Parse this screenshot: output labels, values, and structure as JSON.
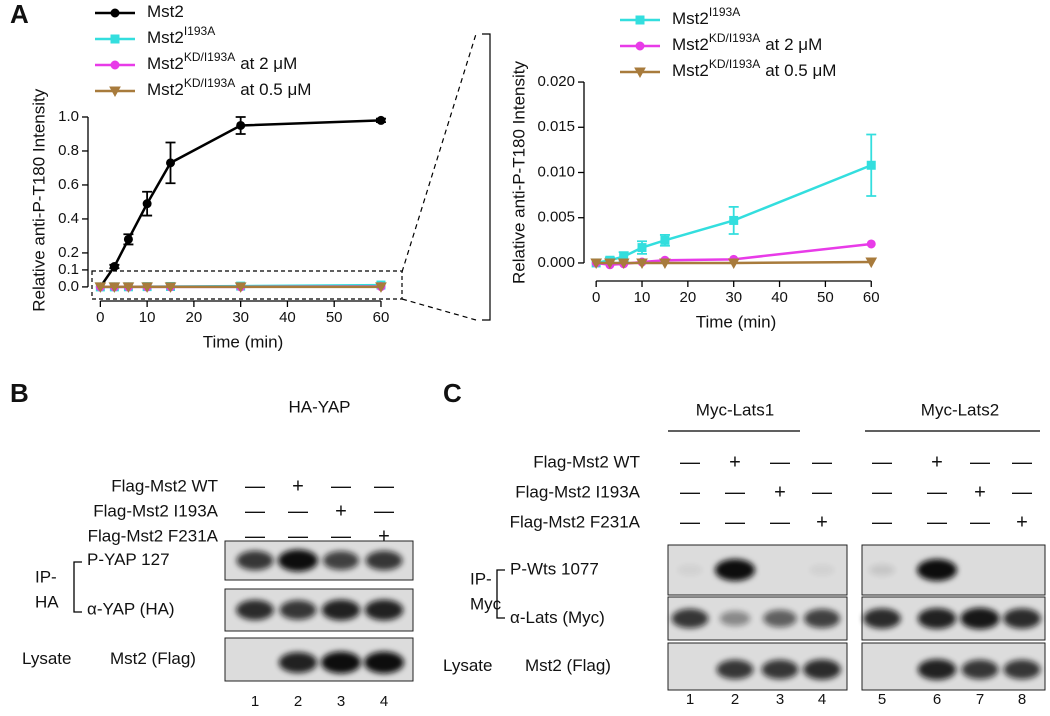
{
  "panel_labels": [
    "A",
    "B",
    "C"
  ],
  "chart_data": [
    {
      "type": "line",
      "xlabel": "Time (min)",
      "ylabel": "Relative anti-P-T180 Intensity",
      "x": [
        0,
        3,
        6,
        10,
        15,
        30,
        60
      ],
      "xlim": [
        -2,
        63
      ],
      "xticks": [
        0,
        10,
        20,
        30,
        40,
        50,
        60
      ],
      "ylim": [
        -0.03,
        1.05
      ],
      "yticks": [
        {
          "value": 0,
          "label": "0.0"
        },
        0.1,
        0.2,
        0.4,
        0.6,
        0.8,
        {
          "value": 1,
          "label": "1.0"
        }
      ],
      "series": [
        {
          "name": [
            "Mst2"
          ],
          "color": "#000000",
          "marker": "circle",
          "values": [
            0,
            0.12,
            0.28,
            0.49,
            0.73,
            0.95,
            0.98
          ],
          "errors": [
            null,
            0.01,
            0.03,
            0.07,
            0.12,
            0.05,
            0.01
          ]
        },
        {
          "name": [
            "Mst2",
            "I193A"
          ],
          "color": "#33dede",
          "marker": "square",
          "values": [
            0,
            0.0003,
            0.0007,
            0.0017,
            0.0025,
            0.0047,
            0.0108
          ],
          "errors": [
            null,
            null,
            null,
            null,
            null,
            null,
            null
          ]
        },
        {
          "name": [
            "Mst2",
            "KD/I193A",
            "at 2 μM"
          ],
          "color": "#e83be8",
          "marker": "circle",
          "values": [
            0,
            -0.0002,
            -0.0001,
            0.0001,
            0.0003,
            0.0004,
            0.0021
          ],
          "errors": [
            null,
            null,
            null,
            null,
            null,
            null,
            null
          ]
        },
        {
          "name": [
            "Mst2",
            "KD/I193A",
            "at 0.5 μM"
          ],
          "color": "#a87b3c",
          "marker": "triangle-down",
          "values": [
            0,
            0,
            0,
            0,
            0,
            0,
            0.0001
          ],
          "errors": [
            null,
            null,
            null,
            null,
            null,
            null,
            null
          ]
        }
      ]
    },
    {
      "type": "line",
      "xlabel": "Time (min)",
      "ylabel": "Relative anti-P-T180 Intensity",
      "x": [
        0,
        3,
        6,
        10,
        15,
        30,
        60
      ],
      "xlim": [
        -2,
        63
      ],
      "xticks": [
        0,
        10,
        20,
        30,
        40,
        50,
        60
      ],
      "ylim": [
        -0.001,
        0.021
      ],
      "yticks": [
        {
          "value": 0,
          "label": "0.000"
        },
        {
          "value": 0.005,
          "label": "0.005"
        },
        {
          "value": 0.01,
          "label": "0.010"
        },
        {
          "value": 0.015,
          "label": "0.015"
        },
        {
          "value": 0.02,
          "label": "0.020"
        }
      ],
      "series": [
        {
          "name": [
            "Mst2",
            "I193A"
          ],
          "color": "#33dede",
          "marker": "square",
          "values": [
            0,
            0.0003,
            0.0007,
            0.0017,
            0.0025,
            0.0047,
            0.0108
          ],
          "errors": [
            null,
            0.0003,
            0.0005,
            0.0007,
            0.0006,
            0.0015,
            0.0034
          ]
        },
        {
          "name": [
            "Mst2",
            "KD/I193A",
            "at 2 μM"
          ],
          "color": "#e83be8",
          "marker": "circle",
          "values": [
            0,
            -0.0002,
            -0.0001,
            0.0001,
            0.0003,
            0.0004,
            0.0021
          ],
          "errors": [
            null,
            null,
            null,
            null,
            null,
            null,
            null
          ]
        },
        {
          "name": [
            "Mst2",
            "KD/I193A",
            "at 0.5 μM"
          ],
          "color": "#a87b3c",
          "marker": "triangle-down",
          "values": [
            0,
            0,
            0,
            0,
            0,
            0,
            0.0001
          ],
          "errors": [
            null,
            null,
            null,
            null,
            null,
            null,
            null
          ]
        }
      ]
    }
  ],
  "blots": {
    "B": {
      "title": "HA-YAP",
      "conditions": [
        {
          "label": "Flag-Mst2 WT",
          "signs": [
            "—",
            "+",
            "—",
            "—"
          ]
        },
        {
          "label": "Flag-Mst2 I193A",
          "signs": [
            "—",
            "—",
            "+",
            "—"
          ]
        },
        {
          "label": "Flag-Mst2 F231A",
          "signs": [
            "—",
            "—",
            "—",
            "+"
          ]
        }
      ],
      "ip_label": [
        "IP-",
        "HA"
      ],
      "rows": [
        "P-YAP 127",
        "α-YAP (HA)"
      ],
      "lysate_label": "Lysate",
      "lysate_row": "Mst2 (Flag)",
      "lanes": [
        "1",
        "2",
        "3",
        "4"
      ]
    },
    "C": {
      "groups": [
        "Myc-Lats1",
        "Myc-Lats2"
      ],
      "conditions": [
        {
          "label": "Flag-Mst2 WT",
          "signs": [
            "—",
            "+",
            "—",
            "—",
            "—",
            "+",
            "—",
            "—"
          ]
        },
        {
          "label": "Flag-Mst2 I193A",
          "signs": [
            "—",
            "—",
            "+",
            "—",
            "—",
            "—",
            "+",
            "—"
          ]
        },
        {
          "label": "Flag-Mst2 F231A",
          "signs": [
            "—",
            "—",
            "—",
            "+",
            "—",
            "—",
            "—",
            "+"
          ]
        }
      ],
      "ip_label": [
        "IP-",
        "Myc"
      ],
      "rows": [
        "P-Wts 1077",
        "α-Lats (Myc)"
      ],
      "lysate_label": "Lysate",
      "lysate_row": "Mst2 (Flag)",
      "lanes": [
        "1",
        "2",
        "3",
        "4",
        "5",
        "6",
        "7",
        "8"
      ]
    }
  }
}
